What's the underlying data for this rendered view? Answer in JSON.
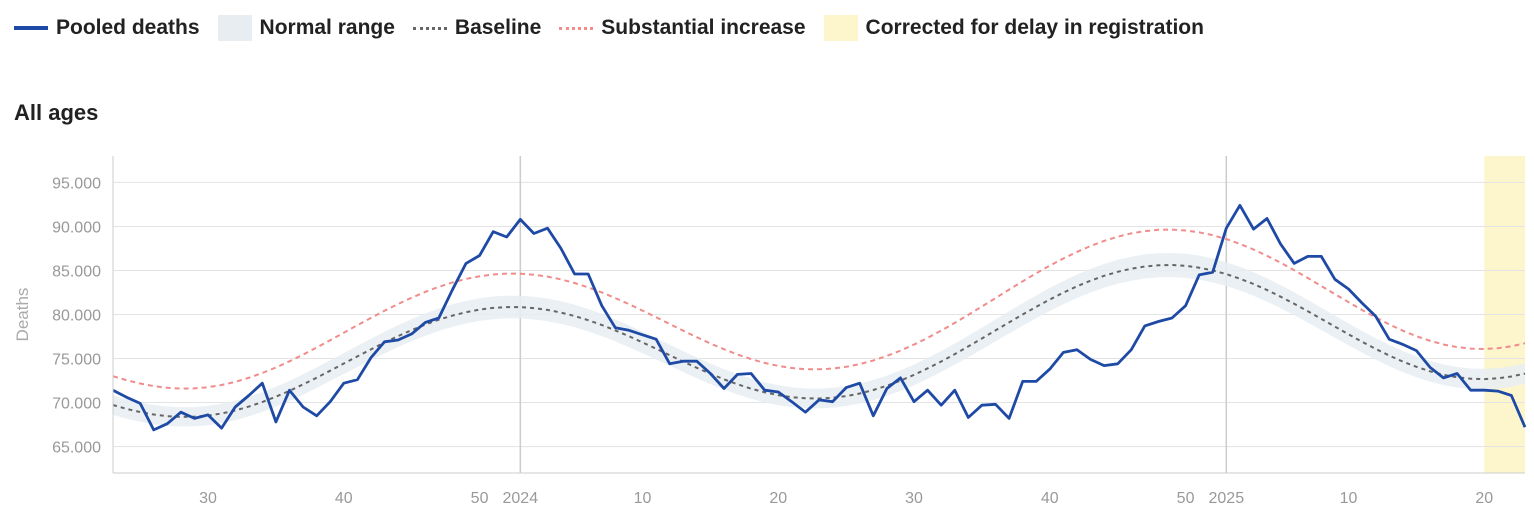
{
  "legend": {
    "pooled": "Pooled deaths",
    "normal": "Normal range",
    "baseline": "Baseline",
    "substantial": "Substantial increase",
    "corrected": "Corrected for delay in registration"
  },
  "panel_title": "All ages",
  "colors": {
    "pooled": "#1e4aa6",
    "normal_band": "#e8edf2",
    "baseline": "#666666",
    "substantial": "#f08c8c",
    "corrected": "#fdf6cc"
  },
  "chart_data": {
    "type": "line",
    "ylabel": "Deaths",
    "ylim": [
      62000,
      98000
    ],
    "yticks": [
      65000,
      70000,
      75000,
      80000,
      85000,
      90000,
      95000
    ],
    "ytick_labels": [
      "65.000",
      "70.000",
      "75.000",
      "80.000",
      "85.000",
      "90.000",
      "95.000"
    ],
    "x_index_range": [
      0,
      104
    ],
    "xticks": [
      {
        "i": 7,
        "label": "30"
      },
      {
        "i": 17,
        "label": "40"
      },
      {
        "i": 27,
        "label": "50"
      },
      {
        "i": 30,
        "label": "2024",
        "gridline": true
      },
      {
        "i": 39,
        "label": "10"
      },
      {
        "i": 49,
        "label": "20"
      },
      {
        "i": 59,
        "label": "30"
      },
      {
        "i": 69,
        "label": "40"
      },
      {
        "i": 79,
        "label": "50"
      },
      {
        "i": 82,
        "label": "2025",
        "gridline": true
      },
      {
        "i": 91,
        "label": "10"
      },
      {
        "i": 101,
        "label": "20"
      }
    ],
    "corrected_from_index": 101,
    "grid": true,
    "legend_position": "top",
    "series": [
      {
        "name": "Pooled deaths",
        "values": [
          71400,
          70600,
          69900,
          66900,
          67600,
          68900,
          68200,
          68600,
          67100,
          69500,
          70800,
          72200,
          67800,
          71400,
          69500,
          68500,
          70100,
          72200,
          72600,
          75100,
          76900,
          77100,
          77800,
          79100,
          79600,
          82800,
          85800,
          86700,
          89400,
          88800,
          90800,
          89200,
          89800,
          87500,
          84600,
          84600,
          81000,
          78500,
          78200,
          77700,
          77200,
          74400,
          74700,
          74700,
          73300,
          71600,
          73200,
          73300,
          71400,
          71200,
          70100,
          68900,
          70300,
          70100,
          71700,
          72200,
          68500,
          71600,
          72800,
          70100,
          71400,
          69700,
          71400,
          68300,
          69700,
          69800,
          68200,
          72400,
          72400,
          73800,
          75700,
          76000,
          74900,
          74200,
          74400,
          76000,
          78700,
          79200,
          79600,
          81000,
          84500,
          84800,
          89800,
          92400,
          89700,
          90900,
          88000,
          85800,
          86600,
          86600,
          84000,
          82900,
          81300,
          79800,
          77200,
          76600,
          75900,
          74000,
          72800,
          73300,
          71400,
          71400,
          71300,
          70800,
          67200
        ]
      },
      {
        "name": "Baseline",
        "values": [
          69718,
          69283,
          68920,
          68640,
          68453,
          68369,
          68392,
          68524,
          68762,
          69103,
          69539,
          70063,
          70665,
          71334,
          72059,
          72826,
          73621,
          74431,
          75243,
          76042,
          76815,
          77550,
          78234,
          78857,
          79409,
          79880,
          80265,
          80557,
          80751,
          80845,
          80838,
          80729,
          80521,
          80218,
          79826,
          79351,
          78803,
          78193,
          77532,
          76834,
          76111,
          75378,
          74651,
          73942,
          73267,
          72640,
          72073,
          71576,
          71161,
          70836,
          70608,
          70481,
          70460,
          70545,
          70735,
          71030,
          71424,
          71913,
          72489,
          73146,
          73874,
          74662,
          75500,
          76376,
          77277,
          78191,
          79105,
          80005,
          80877,
          81709,
          82488,
          83202,
          83839,
          84391,
          84849,
          85206,
          85455,
          85593,
          85616,
          85525,
          85320,
          85005,
          84586,
          84069,
          83462,
          82777,
          82024,
          81218,
          80372,
          79501,
          78622,
          77750,
          76901,
          76092,
          75339,
          74656,
          74057,
          73553,
          73155,
          72871,
          72707,
          72668,
          72754,
          72964,
          73294
        ]
      }
    ],
    "baseline_offset_method": "normal range = baseline ± 1.6% band"
  }
}
